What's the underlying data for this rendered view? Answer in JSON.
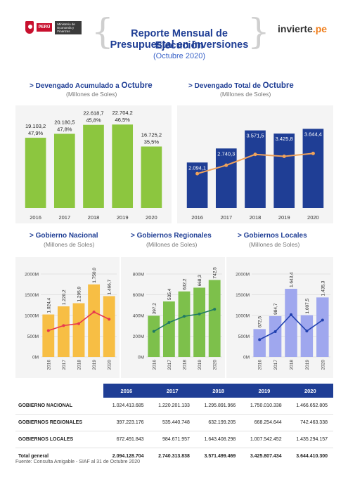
{
  "header": {
    "gov_peru": "PERÚ",
    "gov_ministry": "Ministerio de Economía y Finanzas",
    "title_line1": "Reporte Mensual de Ejecución",
    "title_line2": "Presupuestal en Inversiones",
    "subtitle": "(Octubre 2020)",
    "logo_main": "invierte",
    "logo_suffix": ".pe"
  },
  "sections": {
    "acumulado": {
      "prefix": "> Devengado Acumulado a ",
      "highlight": "Octubre",
      "unit": "(Millones de Soles)"
    },
    "total_octubre": {
      "prefix": "> Devengado Total de ",
      "highlight": "Octubre",
      "unit": "(Millones de Soles)"
    },
    "nacional": {
      "title": "> Gobierno Nacional",
      "unit": "(Millones de Soles)"
    },
    "regionales": {
      "title": "> Gobiernos Regionales",
      "unit": "(Millones de Soles)"
    },
    "locales": {
      "title": "> Gobiernos Locales",
      "unit": "(Millones de Soles)"
    }
  },
  "chart_data": [
    {
      "type": "bar",
      "title": "Devengado Acumulado a Octubre",
      "subtitle": "(Millones de Soles)",
      "categories": [
        "2016",
        "2017",
        "2018",
        "2019",
        "2020"
      ],
      "values": [
        19103.2,
        20180.5,
        22618.7,
        22704.2,
        16725.2
      ],
      "value_labels": [
        "19.103,2",
        "20.180,5",
        "22.618,7",
        "22.704,2",
        "16.725,2"
      ],
      "percent_labels": [
        "47,9%",
        "47,8%",
        "45,8%",
        "46,5%",
        "35,5%"
      ],
      "ylim": [
        0,
        26000
      ],
      "color": "#8cc63f"
    },
    {
      "type": "bar",
      "title": "Devengado Total de Octubre",
      "subtitle": "(Millones de Soles)",
      "categories": [
        "2016",
        "2017",
        "2018",
        "2019",
        "2020"
      ],
      "values": [
        2094.1,
        2740.3,
        3571.5,
        3425.8,
        3644.4
      ],
      "value_labels": [
        "2.094,1",
        "2.740,3",
        "3.571,5",
        "3.425,8",
        "3.644,4"
      ],
      "ylim": [
        0,
        4400
      ],
      "color": "#1f3e95",
      "line_color": "#f0a25a"
    },
    {
      "type": "bar",
      "title": "Gobierno Nacional",
      "subtitle": "(Millones de Soles)",
      "categories": [
        "2016",
        "2017",
        "2018",
        "2019",
        "2020"
      ],
      "values": [
        1024.4,
        1220.2,
        1295.9,
        1750.0,
        1466.7
      ],
      "value_labels": [
        "1.024,4",
        "1.220,2",
        "1.295,9",
        "1.750,0",
        "1.466,7"
      ],
      "y_ticks": [
        "0M",
        "500M",
        "1000M",
        "1500M",
        "2000M"
      ],
      "ylim": [
        0,
        2000
      ],
      "color": "#f7be44",
      "line_color": "#e8384f"
    },
    {
      "type": "bar",
      "title": "Gobiernos Regionales",
      "subtitle": "(Millones de Soles)",
      "categories": [
        "2016",
        "2017",
        "2018",
        "2019",
        "2020"
      ],
      "values": [
        397.2,
        535.4,
        632.2,
        668.3,
        742.5
      ],
      "value_labels": [
        "397,2",
        "535,4",
        "632,2",
        "668,3",
        "742,5"
      ],
      "y_ticks": [
        "0M",
        "200M",
        "400M",
        "600M",
        "800M"
      ],
      "ylim": [
        0,
        800
      ],
      "color": "#7dc04b",
      "line_color": "#1f7a63"
    },
    {
      "type": "bar",
      "title": "Gobiernos Locales",
      "subtitle": "(Millones de Soles)",
      "categories": [
        "2016",
        "2017",
        "2018",
        "2019",
        "2020"
      ],
      "values": [
        672.5,
        984.7,
        1643.4,
        1007.5,
        1435.3
      ],
      "value_labels": [
        "672,5",
        "984,7",
        "1.643,4",
        "1.007,5",
        "1.435,3"
      ],
      "y_ticks": [
        "0M",
        "500M",
        "1000M",
        "1500M",
        "2000M"
      ],
      "ylim": [
        0,
        2000
      ],
      "color": "#9fa7ee",
      "line_color": "#2040b0"
    },
    {
      "type": "table",
      "columns": [
        "",
        "2016",
        "2017",
        "2018",
        "2019",
        "2020"
      ],
      "rows": [
        [
          "GOBIERNO NACIONAL",
          "1.024.413.685",
          "1.220.201.133",
          "1.295.891.966",
          "1.750.010.338",
          "1.466.652.805"
        ],
        [
          "GOBIERNOS REGIONALES",
          "397.223.176",
          "535.440.748",
          "632.199.205",
          "668.254.644",
          "742.463.338"
        ],
        [
          "GOBIERNOS LOCALES",
          "672.491.843",
          "984.671.957",
          "1.643.408.298",
          "1.007.542.452",
          "1.435.294.157"
        ],
        [
          "Total general",
          "2.094.128.704",
          "2.740.313.838",
          "3.571.499.469",
          "3.425.807.434",
          "3.644.410.300"
        ]
      ]
    }
  ],
  "source": "Fuente: Consulta Amigable - SIAF al 31 de Octubre 2020"
}
